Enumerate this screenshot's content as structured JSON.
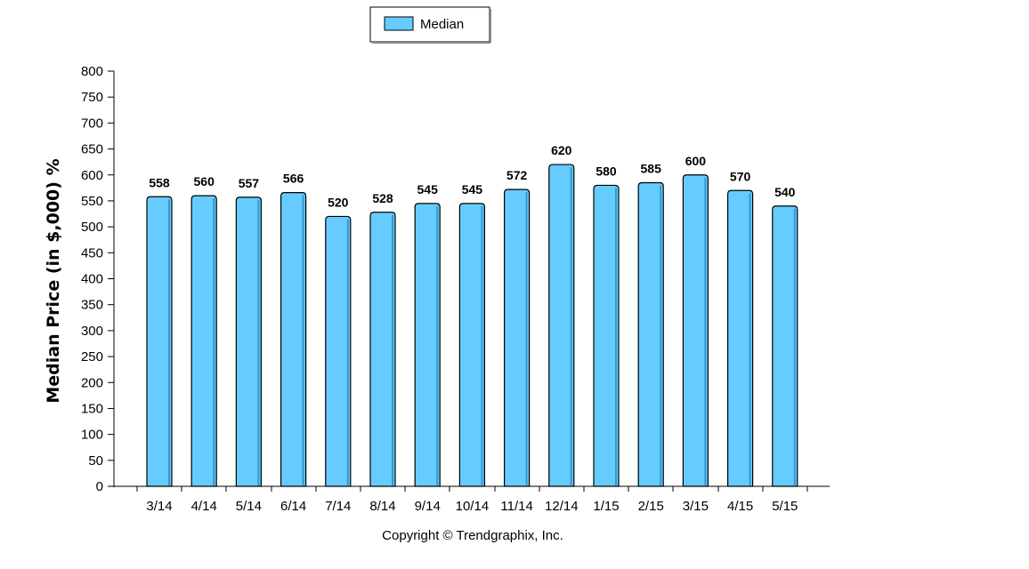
{
  "chart_data": {
    "type": "bar",
    "categories": [
      "3/14",
      "4/14",
      "5/14",
      "6/14",
      "7/14",
      "8/14",
      "9/14",
      "10/14",
      "11/14",
      "12/14",
      "1/15",
      "2/15",
      "3/15",
      "4/15",
      "5/15"
    ],
    "series": [
      {
        "name": "Median",
        "values": [
          558,
          560,
          557,
          566,
          520,
          528,
          545,
          545,
          572,
          620,
          580,
          585,
          600,
          570,
          540
        ]
      }
    ],
    "data_labels": [
      "558",
      "560",
      "557",
      "566",
      "520",
      "528",
      "545",
      "545",
      "572",
      "620",
      "580",
      "585",
      "600",
      "570",
      "540"
    ],
    "ylabel": "Median Price (in $,000) %",
    "xlabel": "",
    "ylim": [
      0,
      800
    ],
    "yticks": [
      0,
      50,
      100,
      150,
      200,
      250,
      300,
      350,
      400,
      450,
      500,
      550,
      600,
      650,
      700,
      750,
      800
    ],
    "ytick_labels": [
      "0",
      "50",
      "100",
      "150",
      "200",
      "250",
      "300",
      "350",
      "400",
      "450",
      "500",
      "550",
      "600",
      "650",
      "700",
      "750",
      "800"
    ],
    "legend_position": "top-center",
    "grid": false,
    "bar_color": "#66ccff",
    "bar_stroke": "#000000"
  },
  "legend": {
    "label": "Median"
  },
  "footer": {
    "copyright": "Copyright © Trendgraphix, Inc."
  }
}
